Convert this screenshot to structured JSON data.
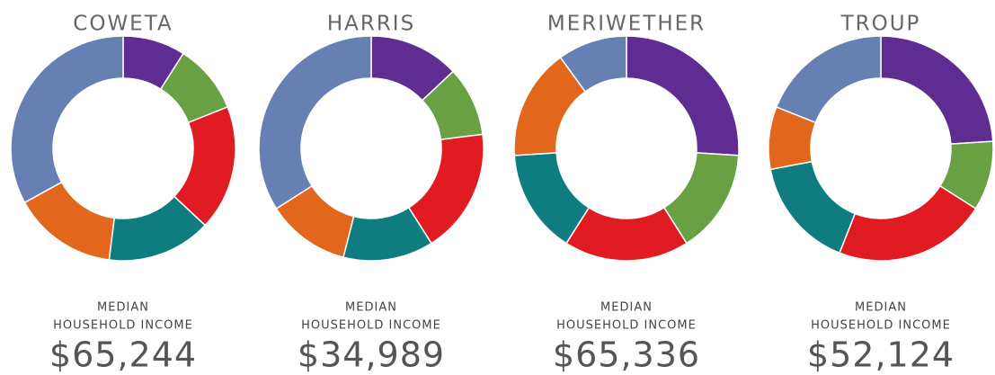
{
  "chart_data": [
    {
      "type": "donut",
      "title": "COWETA",
      "values": [
        9,
        10,
        18,
        15,
        15,
        33
      ],
      "colors": [
        "#5f2c91",
        "#68a043",
        "#e01b22",
        "#0f7d80",
        "#e2661c",
        "#6680b3"
      ],
      "annotation": [
        "MEDIAN",
        "HOUSEHOLD INCOME"
      ],
      "income": "$65,244"
    },
    {
      "type": "donut",
      "title": "HARRIS",
      "values": [
        13,
        10,
        18,
        13,
        12,
        34
      ],
      "colors": [
        "#5f2c91",
        "#68a043",
        "#e01b22",
        "#0f7d80",
        "#e2661c",
        "#6680b3"
      ],
      "annotation": [
        "MEDIAN",
        "HOUSEHOLD INCOME"
      ],
      "income": "$34,989"
    },
    {
      "type": "donut",
      "title": "MERIWETHER",
      "values": [
        26,
        15,
        18,
        15,
        16,
        10
      ],
      "colors": [
        "#5f2c91",
        "#68a043",
        "#e01b22",
        "#0f7d80",
        "#e2661c",
        "#6680b3"
      ],
      "annotation": [
        "MEDIAN",
        "HOUSEHOLD INCOME"
      ],
      "income": "$65,336"
    },
    {
      "type": "donut",
      "title": "TROUP",
      "values": [
        24,
        10,
        22,
        16,
        9,
        19
      ],
      "colors": [
        "#5f2c91",
        "#68a043",
        "#e01b22",
        "#0f7d80",
        "#e2661c",
        "#6680b3"
      ],
      "annotation": [
        "MEDIAN",
        "HOUSEHOLD INCOME"
      ],
      "income": "$52,124"
    }
  ]
}
